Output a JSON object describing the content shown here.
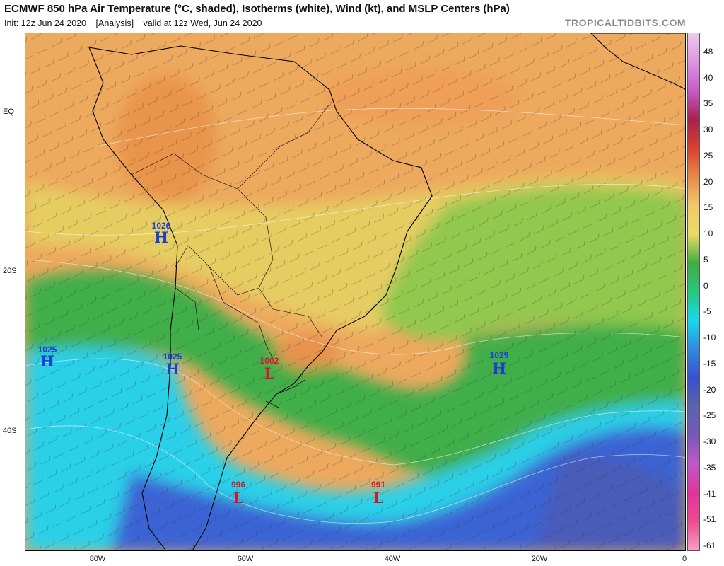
{
  "header": {
    "title": "ECMWF 850 hPa Air Temperature (°C, shaded), Isotherms (white), Wind (kt), and MSLP Centers (hPa)",
    "init": "Init: 12z Jun 24 2020",
    "analysis": "[Analysis]",
    "valid": "valid at 12z Wed, Jun 24 2020",
    "credit": "TROPICALTIDBITS.COM"
  },
  "axes": {
    "lat_labels": [
      "EQ",
      "20S",
      "40S"
    ],
    "lon_labels": [
      "80W",
      "60W",
      "40W",
      "20W",
      "0"
    ]
  },
  "colorbar": {
    "labels": [
      "48",
      "40",
      "35",
      "30",
      "25",
      "20",
      "15",
      "10",
      "5",
      "0",
      "-5",
      "-10",
      "-15",
      "-20",
      "-25",
      "-30",
      "-35",
      "-41",
      "-51",
      "-61"
    ],
    "colors": [
      "#f0c8ee",
      "#de94e0",
      "#c45cc8",
      "#a8204e",
      "#d84030",
      "#e88a4a",
      "#f3c86a",
      "#eadb63",
      "#3fae3f",
      "#28c77e",
      "#18d8f0",
      "#2f8be0",
      "#3a4fcf",
      "#5a64a8",
      "#7858b8",
      "#c058c8",
      "#e0349c",
      "#f04a90",
      "#f6a0c8"
    ]
  },
  "pressure_centers": [
    {
      "type": "H",
      "value": "1026",
      "color": "#1a3fd0"
    },
    {
      "type": "H",
      "value": "1025",
      "color": "#1a3fd0"
    },
    {
      "type": "H",
      "value": "1025",
      "color": "#1a3fd0"
    },
    {
      "type": "L",
      "value": "1002",
      "color": "#d01a2a"
    },
    {
      "type": "H",
      "value": "1029",
      "color": "#1a3fd0"
    },
    {
      "type": "L",
      "value": "996",
      "color": "#d01a2a"
    },
    {
      "type": "L",
      "value": "991",
      "color": "#d01a2a"
    }
  ]
}
